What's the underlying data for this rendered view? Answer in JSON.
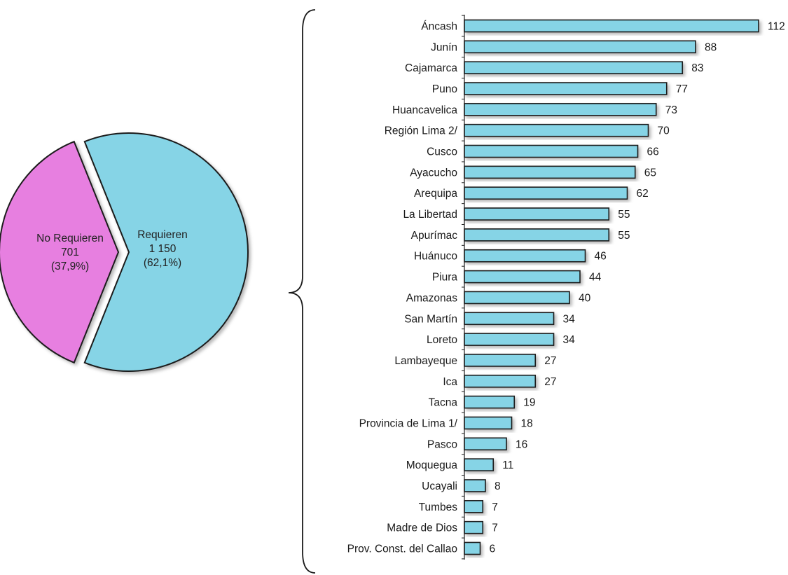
{
  "chart_data": [
    {
      "type": "pie",
      "slices": [
        {
          "label": "No Requieren",
          "value": 701,
          "value_text": "701",
          "percent_text": "(37,9%)",
          "color": "#e77fe0"
        },
        {
          "label": "Requieren",
          "value": 1150,
          "value_text": "1 150",
          "percent_text": "(62,1%)",
          "color": "#86d4e6"
        }
      ],
      "exploded": true,
      "title": ""
    },
    {
      "type": "bar",
      "orientation": "horizontal",
      "categories": [
        "Áncash",
        "Junín",
        "Cajamarca",
        "Puno",
        "Huancavelica",
        "Región Lima 2/",
        "Cusco",
        "Ayacucho",
        "Arequipa",
        "La Libertad",
        "Apurímac",
        "Huánuco",
        "Piura",
        "Amazonas",
        "San Martín",
        "Loreto",
        "Lambayeque",
        "Ica",
        "Tacna",
        "Provincia de Lima 1/",
        "Pasco",
        "Moquegua",
        "Ucayali",
        "Tumbes",
        "Madre de Dios",
        "Prov. Const. del Callao"
      ],
      "values": [
        112,
        88,
        83,
        77,
        73,
        70,
        66,
        65,
        62,
        55,
        55,
        46,
        44,
        40,
        34,
        34,
        27,
        27,
        19,
        18,
        16,
        11,
        8,
        7,
        7,
        6
      ],
      "color": "#86d4e6",
      "data_labels": true,
      "xlim": [
        0,
        112
      ],
      "title": "",
      "xlabel": "",
      "ylabel": ""
    }
  ]
}
